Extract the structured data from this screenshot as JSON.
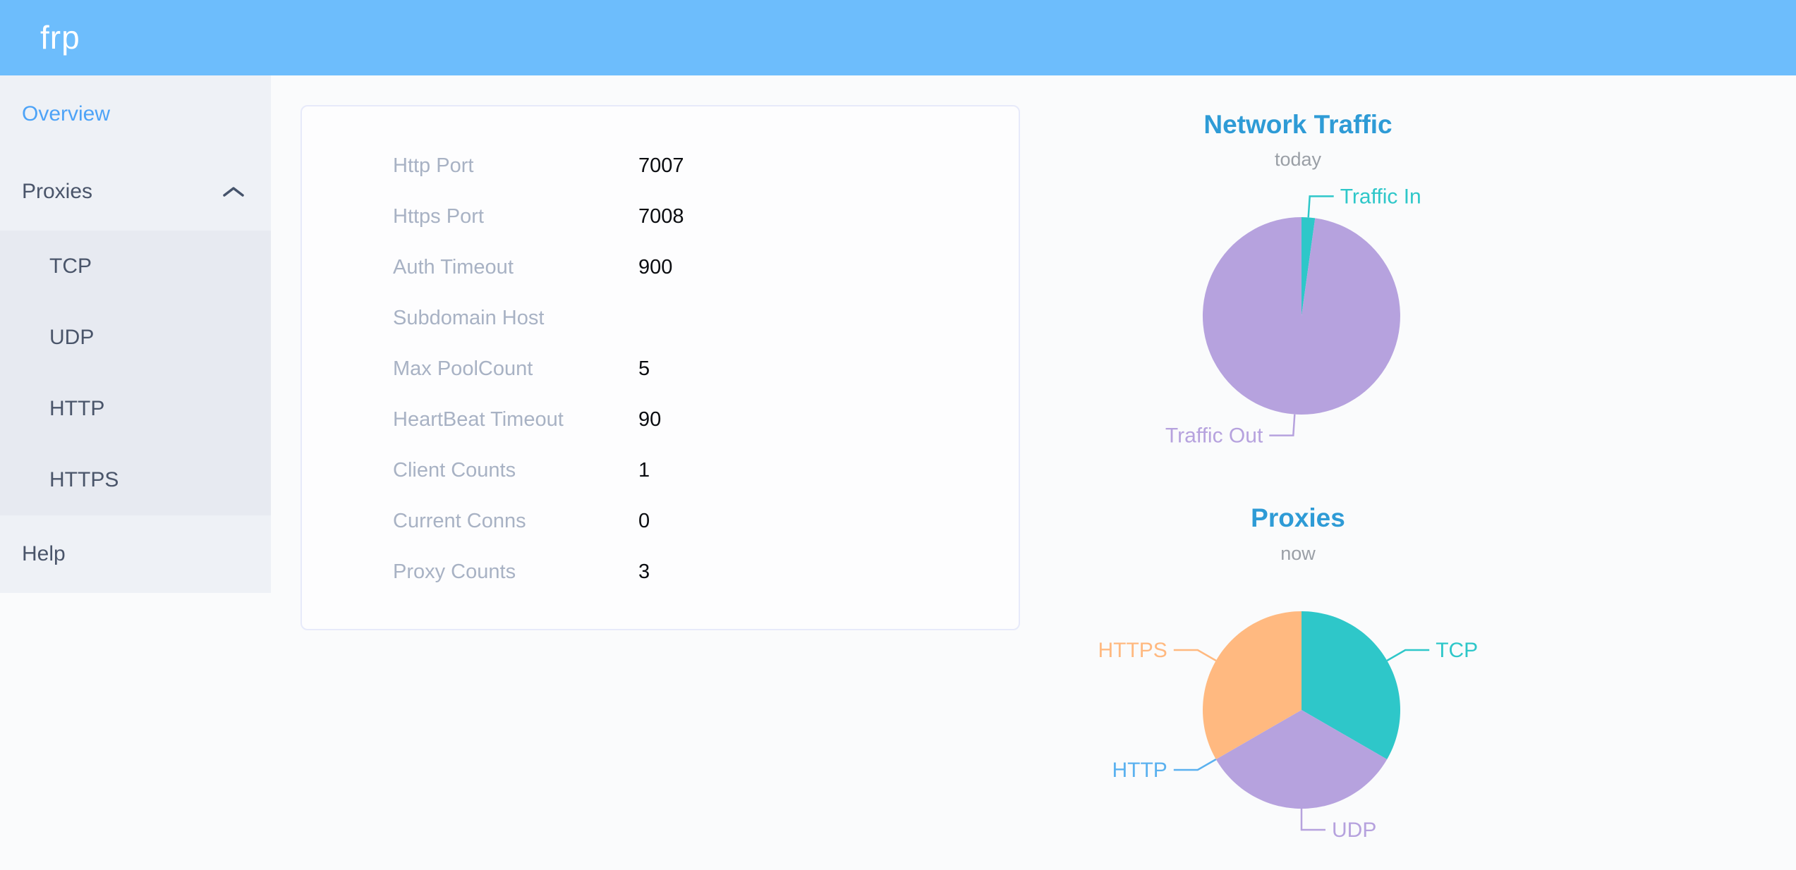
{
  "header": {
    "logo": "frp"
  },
  "sidebar": {
    "items": [
      {
        "label": "Overview",
        "active": true
      },
      {
        "label": "Proxies",
        "expanded": true,
        "children": [
          "TCP",
          "UDP",
          "HTTP",
          "HTTPS"
        ]
      },
      {
        "label": "Help"
      }
    ]
  },
  "overview": {
    "rows": [
      {
        "label": "Http Port",
        "value": "7007"
      },
      {
        "label": "Https Port",
        "value": "7008"
      },
      {
        "label": "Auth Timeout",
        "value": "900"
      },
      {
        "label": "Subdomain Host",
        "value": ""
      },
      {
        "label": "Max PoolCount",
        "value": "5"
      },
      {
        "label": "HeartBeat Timeout",
        "value": "90"
      },
      {
        "label": "Client Counts",
        "value": "1"
      },
      {
        "label": "Current Conns",
        "value": "0"
      },
      {
        "label": "Proxy Counts",
        "value": "3"
      }
    ]
  },
  "chart_data": [
    {
      "type": "pie",
      "title": "Network Traffic",
      "subtitle": "today",
      "categories": [
        "Traffic In",
        "Traffic Out"
      ],
      "values": [
        2.2,
        97.8
      ],
      "value_note": "percent of today's traffic, estimated from slice angles (no numeric labels shown)",
      "colors": [
        "#2ec7c9",
        "#b6a2de"
      ],
      "legend_position": "none",
      "label_style": "outside-with-leader-lines"
    },
    {
      "type": "pie",
      "title": "Proxies",
      "subtitle": "now",
      "categories": [
        "TCP",
        "UDP",
        "HTTP",
        "HTTPS"
      ],
      "values": [
        1,
        1,
        0,
        1
      ],
      "value_note": "proxy counts per type; three equal 120-degree slices, HTTP slice is zero-width",
      "colors": [
        "#2ec7c9",
        "#b6a2de",
        "#5ab1ef",
        "#ffb980"
      ],
      "legend_position": "none",
      "label_style": "outside-with-leader-lines"
    }
  ],
  "colors": {
    "header_bg": "#6dbdfc",
    "sidebar_bg": "#eef1f6",
    "submenu_bg": "#e7eaf1",
    "sidebar_text": "#4a556a",
    "sidebar_active": "#4da3f7",
    "chart_title": "#2e9bd6",
    "config_label": "#a8b2c4",
    "config_value": "#0a0c10",
    "pie_teal": "#2ec7c9",
    "pie_purple": "#b6a2de",
    "pie_blue": "#5ab1ef",
    "pie_orange": "#ffb980"
  }
}
